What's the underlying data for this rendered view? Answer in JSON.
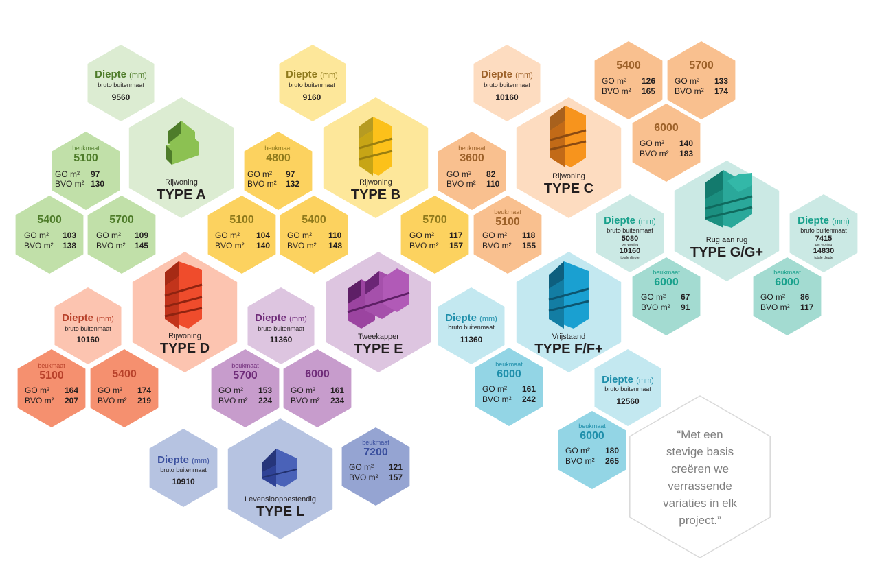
{
  "labels": {
    "depth": "Diepte",
    "depth_unit": "(mm)",
    "gross": "bruto buitenmaat",
    "beukmaat": "beukmaat",
    "go": "GO m²",
    "bvo": "BVO m²",
    "per_woning": "per woning",
    "totale_diepte": "totale diepte"
  },
  "colors": {
    "A": {
      "light": "#dcecd2",
      "mid": "#c1e0a9",
      "accent": "#4e7c2a",
      "icon": "green-house-icon"
    },
    "B": {
      "light": "#fde79a",
      "mid": "#fcd25f",
      "accent": "#8f7a1c",
      "icon": "yellow-house-icon"
    },
    "C": {
      "light": "#fddcc0",
      "mid": "#f9c08f",
      "accent": "#9d6129",
      "icon": "orange-house-icon"
    },
    "D": {
      "light": "#fcc4b0",
      "mid": "#f5906f",
      "accent": "#b8412a",
      "icon": "red-house-icon"
    },
    "E": {
      "light": "#ddc5e0",
      "mid": "#c79ccc",
      "accent": "#6f2c79",
      "icon": "purple-house-icon"
    },
    "F": {
      "light": "#c3e8f0",
      "mid": "#93d5e5",
      "accent": "#1f8fab",
      "icon": "blue-house-icon"
    },
    "G": {
      "light": "#cbe9e4",
      "mid": "#a3dbd1",
      "accent": "#19a18c",
      "icon": "teal-house-icon"
    },
    "L": {
      "light": "#b6c3e1",
      "mid": "#95a4d2",
      "accent": "#3a4f9e",
      "icon": "navy-house-icon"
    },
    "quote_border": "#d9d9d9"
  },
  "types": {
    "A": {
      "kind": "Rijwoning",
      "name": "TYPE A"
    },
    "B": {
      "kind": "Rijwoning",
      "name": "TYPE B"
    },
    "C": {
      "kind": "Rijwoning",
      "name": "TYPE C"
    },
    "D": {
      "kind": "Rijwoning",
      "name": "TYPE D"
    },
    "E": {
      "kind": "Tweekapper",
      "name": "TYPE E"
    },
    "F": {
      "kind": "Vrijstaand",
      "name": "TYPE F/F+"
    },
    "G": {
      "kind": "Rug aan rug",
      "name": "TYPE G/G+"
    },
    "L": {
      "kind": "Levensloopbestendig",
      "name": "TYPE L"
    }
  },
  "depths": {
    "A": "9560",
    "B": "9160",
    "C": "10160",
    "D": "10160",
    "E": "11360",
    "F1": "11360",
    "F2": "12560",
    "L": "10910",
    "G1": {
      "top": "5080",
      "bottom": "10160"
    },
    "G2": {
      "top": "7415",
      "bottom": "14830"
    }
  },
  "sizes": {
    "A1": {
      "beuk": "5100",
      "go": "97",
      "bvo": "130"
    },
    "A2": {
      "beuk": "5400",
      "go": "103",
      "bvo": "138"
    },
    "A3": {
      "beuk": "5700",
      "go": "109",
      "bvo": "145"
    },
    "B1": {
      "beuk": "4800",
      "go": "97",
      "bvo": "132"
    },
    "B2": {
      "beuk": "5100",
      "go": "104",
      "bvo": "140"
    },
    "B3": {
      "beuk": "5400",
      "go": "110",
      "bvo": "148"
    },
    "B4": {
      "beuk": "5700",
      "go": "117",
      "bvo": "157"
    },
    "C1": {
      "beuk": "3600",
      "go": "82",
      "bvo": "110"
    },
    "C2": {
      "beuk": "5100",
      "go": "118",
      "bvo": "155"
    },
    "C3": {
      "beuk": "5400",
      "go": "126",
      "bvo": "165"
    },
    "C4": {
      "beuk": "5700",
      "go": "133",
      "bvo": "174"
    },
    "C5": {
      "beuk": "6000",
      "go": "140",
      "bvo": "183"
    },
    "D1": {
      "beuk": "5100",
      "go": "164",
      "bvo": "207"
    },
    "D2": {
      "beuk": "5400",
      "go": "174",
      "bvo": "219"
    },
    "E1": {
      "beuk": "5700",
      "go": "153",
      "bvo": "224"
    },
    "E2": {
      "beuk": "6000",
      "go": "161",
      "bvo": "234"
    },
    "F1": {
      "beuk": "6000",
      "go": "161",
      "bvo": "242"
    },
    "F2": {
      "beuk": "6000",
      "go": "180",
      "bvo": "265"
    },
    "G1": {
      "beuk": "6000",
      "go": "67",
      "bvo": "91"
    },
    "G2": {
      "beuk": "6000",
      "go": "86",
      "bvo": "117"
    },
    "L1": {
      "beuk": "7200",
      "go": "121",
      "bvo": "157"
    }
  },
  "quote": {
    "line1": "“Met een",
    "line2": "stevige basis",
    "line3": "creëren we",
    "line4": "verrassende",
    "line5": "variaties in elk",
    "line6": "project.”"
  }
}
